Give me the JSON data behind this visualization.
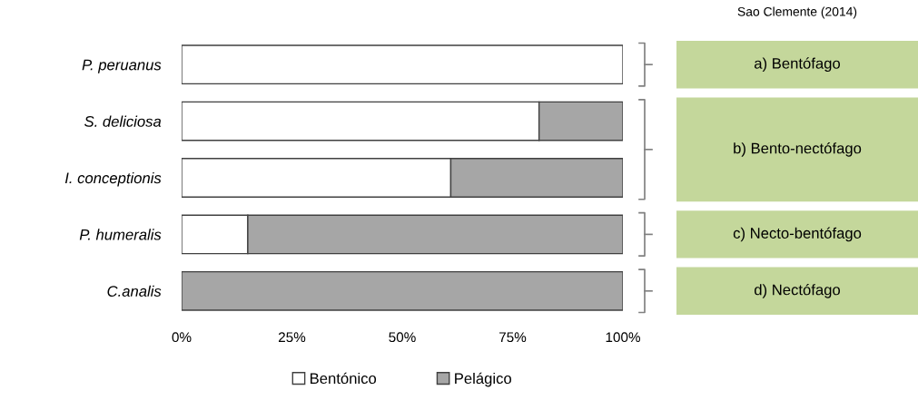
{
  "chart_data": {
    "type": "bar",
    "orientation": "horizontal",
    "stacked": true,
    "categories": [
      "P. peruanus",
      "S. deliciosa",
      "I. conceptionis",
      "P. humeralis",
      "C.analis"
    ],
    "series": [
      {
        "name": "Bentónico",
        "color": "#ffffff",
        "values": [
          100,
          81,
          61,
          15,
          0
        ]
      },
      {
        "name": "Pelágico",
        "color": "#a6a6a6",
        "values": [
          0,
          19,
          39,
          85,
          100
        ]
      }
    ],
    "xlim": [
      0,
      100
    ],
    "xticks": [
      {
        "value": 0,
        "label": "0%"
      },
      {
        "value": 25,
        "label": "25%"
      },
      {
        "value": 50,
        "label": "50%"
      },
      {
        "value": 75,
        "label": "75%"
      },
      {
        "value": 100,
        "label": "100%"
      }
    ],
    "grid": false,
    "legend": "bottom",
    "annotations": [
      "Sao Clemente (2014)",
      "a) Bentófago",
      "b) Bento-nectófago",
      "c) Necto-bentófago",
      "d) Nectófago"
    ]
  }
}
